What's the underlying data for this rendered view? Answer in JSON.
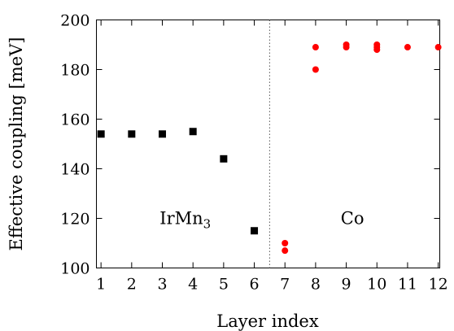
{
  "chart_data": {
    "type": "scatter",
    "xlabel": "Layer index",
    "ylabel": "Effective coupling [meV]",
    "xlim": [
      0.85,
      12.05
    ],
    "ylim": [
      100,
      200
    ],
    "x_ticks": [
      1,
      2,
      3,
      4,
      5,
      6,
      7,
      8,
      9,
      10,
      11,
      12
    ],
    "y_ticks": [
      100,
      120,
      140,
      160,
      180,
      200
    ],
    "grid": false,
    "divider_x": 6.5,
    "annotations": [
      {
        "text": "IrMn",
        "subscript": "3",
        "x": 3.75,
        "y": 120
      },
      {
        "text": "Co",
        "x": 9.2,
        "y": 120
      }
    ],
    "series": [
      {
        "marker": "square",
        "color": "#000000",
        "points": [
          [
            1,
            154
          ],
          [
            2,
            154
          ],
          [
            3,
            154
          ],
          [
            4,
            155
          ],
          [
            5,
            144
          ],
          [
            6,
            115
          ]
        ]
      },
      {
        "marker": "circle",
        "color": "#ff0000",
        "points": [
          [
            7,
            110
          ],
          [
            7,
            107
          ],
          [
            8,
            189
          ],
          [
            8,
            180
          ],
          [
            9,
            190
          ],
          [
            9,
            189
          ],
          [
            10,
            190
          ],
          [
            10,
            189
          ],
          [
            10,
            188
          ],
          [
            11,
            189
          ],
          [
            12,
            189
          ]
        ]
      }
    ]
  }
}
